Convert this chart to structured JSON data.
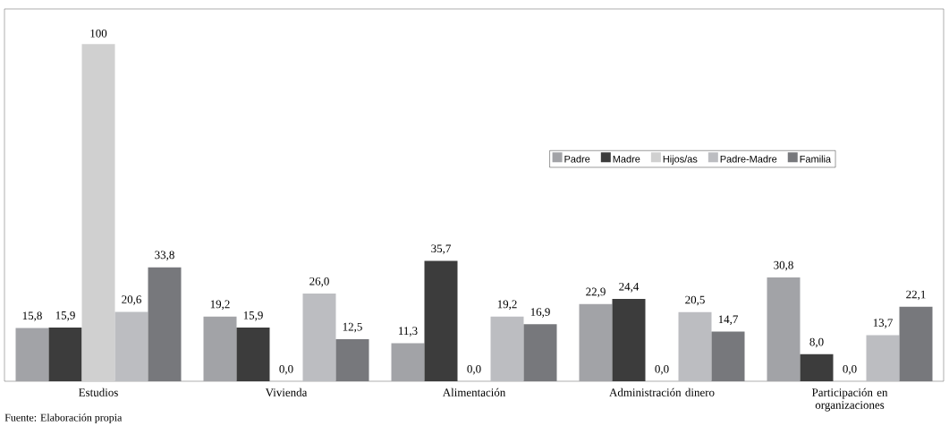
{
  "chart_data": {
    "type": "bar",
    "categories": [
      "Estudios",
      "Vivienda",
      "Alimentación",
      "Administración dinero",
      "Participación en organizaciones"
    ],
    "series": [
      {
        "name": "Padre",
        "color": "#a2a3a7",
        "values": [
          15.8,
          19.2,
          11.3,
          22.9,
          30.8
        ],
        "value_labels": [
          "15,8",
          "19,2",
          "11,3",
          "22,9",
          "30,8"
        ]
      },
      {
        "name": "Madre",
        "color": "#3c3c3c",
        "values": [
          15.9,
          15.9,
          35.7,
          24.4,
          8.0
        ],
        "value_labels": [
          "15,9",
          "15,9",
          "35,7",
          "24,4",
          "8,0"
        ]
      },
      {
        "name": "Hijos/as",
        "color": "#d0d0d0",
        "values": [
          100,
          0.0,
          0.0,
          0.0,
          0.0
        ],
        "value_labels": [
          "100",
          "0,0",
          "0,0",
          "0,0",
          "0,0"
        ]
      },
      {
        "name": "Padre-Madre",
        "color": "#bcbdc1",
        "values": [
          20.6,
          26.0,
          19.2,
          20.5,
          13.7
        ],
        "value_labels": [
          "20,6",
          "26,0",
          "19,2",
          "20,5",
          "13,7"
        ]
      },
      {
        "name": "Familia",
        "color": "#77787c",
        "values": [
          33.8,
          12.5,
          16.9,
          14.7,
          22.1
        ],
        "value_labels": [
          "33,8",
          "12,5",
          "16,9",
          "14,7",
          "22,1"
        ]
      }
    ],
    "legend": "top right",
    "grid": false,
    "annotations": [
      "Fuente: Elaboración propia"
    ]
  }
}
